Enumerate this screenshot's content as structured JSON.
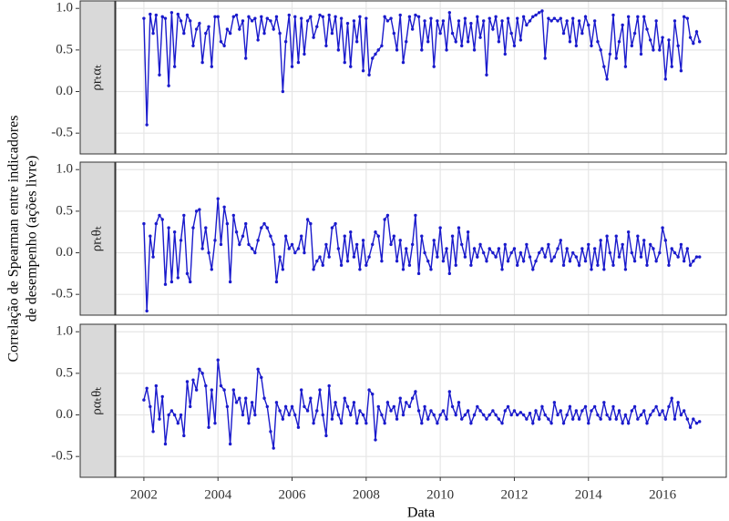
{
  "chart_data": {
    "type": "line",
    "x_label": "Data",
    "y_label": [
      "Correlação de Spearman entre indicadores",
      "de desempenho (ações livre)"
    ],
    "x": [
      2002.0,
      2002.08,
      2002.17,
      2002.25,
      2002.33,
      2002.42,
      2002.5,
      2002.58,
      2002.67,
      2002.75,
      2002.83,
      2002.92,
      2003.0,
      2003.08,
      2003.17,
      2003.25,
      2003.33,
      2003.42,
      2003.5,
      2003.58,
      2003.67,
      2003.75,
      2003.83,
      2003.92,
      2004.0,
      2004.08,
      2004.17,
      2004.25,
      2004.33,
      2004.42,
      2004.5,
      2004.58,
      2004.67,
      2004.75,
      2004.83,
      2004.92,
      2005.0,
      2005.08,
      2005.17,
      2005.25,
      2005.33,
      2005.42,
      2005.5,
      2005.58,
      2005.67,
      2005.75,
      2005.83,
      2005.92,
      2006.0,
      2006.08,
      2006.17,
      2006.25,
      2006.33,
      2006.42,
      2006.5,
      2006.58,
      2006.67,
      2006.75,
      2006.83,
      2006.92,
      2007.0,
      2007.08,
      2007.17,
      2007.25,
      2007.33,
      2007.42,
      2007.5,
      2007.58,
      2007.67,
      2007.75,
      2007.83,
      2007.92,
      2008.0,
      2008.08,
      2008.17,
      2008.25,
      2008.33,
      2008.42,
      2008.5,
      2008.58,
      2008.67,
      2008.75,
      2008.83,
      2008.92,
      2009.0,
      2009.08,
      2009.17,
      2009.25,
      2009.33,
      2009.42,
      2009.5,
      2009.58,
      2009.67,
      2009.75,
      2009.83,
      2009.92,
      2010.0,
      2010.08,
      2010.17,
      2010.25,
      2010.33,
      2010.42,
      2010.5,
      2010.58,
      2010.67,
      2010.75,
      2010.83,
      2010.92,
      2011.0,
      2011.08,
      2011.17,
      2011.25,
      2011.33,
      2011.42,
      2011.5,
      2011.58,
      2011.67,
      2011.75,
      2011.83,
      2011.92,
      2012.0,
      2012.08,
      2012.17,
      2012.25,
      2012.33,
      2012.42,
      2012.5,
      2012.58,
      2012.67,
      2012.75,
      2012.83,
      2012.92,
      2013.0,
      2013.08,
      2013.17,
      2013.25,
      2013.33,
      2013.42,
      2013.5,
      2013.58,
      2013.67,
      2013.75,
      2013.83,
      2013.92,
      2014.0,
      2014.08,
      2014.17,
      2014.25,
      2014.33,
      2014.42,
      2014.5,
      2014.58,
      2014.67,
      2014.75,
      2014.83,
      2014.92,
      2015.0,
      2015.08,
      2015.17,
      2015.25,
      2015.33,
      2015.42,
      2015.5,
      2015.58,
      2015.67,
      2015.75,
      2015.83,
      2015.92,
      2016.0,
      2016.08,
      2016.17,
      2016.25,
      2016.33,
      2016.42,
      2016.5,
      2016.58,
      2016.67,
      2016.75,
      2016.83,
      2016.92,
      2017.0
    ],
    "series": [
      {
        "name": "ρrₜαₜ",
        "color": "#1a1acc",
        "values": [
          0.88,
          -0.4,
          0.93,
          0.7,
          0.92,
          0.2,
          0.9,
          0.88,
          0.07,
          0.95,
          0.3,
          0.93,
          0.85,
          0.7,
          0.92,
          0.85,
          0.55,
          0.75,
          0.82,
          0.35,
          0.7,
          0.78,
          0.3,
          0.9,
          0.9,
          0.6,
          0.55,
          0.75,
          0.7,
          0.9,
          0.92,
          0.75,
          0.85,
          0.4,
          0.9,
          0.85,
          0.88,
          0.62,
          0.9,
          0.7,
          0.88,
          0.85,
          0.75,
          0.9,
          0.7,
          0.0,
          0.6,
          0.92,
          0.3,
          0.9,
          0.35,
          0.88,
          0.45,
          0.85,
          0.9,
          0.65,
          0.78,
          0.92,
          0.9,
          0.55,
          0.92,
          0.7,
          0.9,
          0.5,
          0.88,
          0.35,
          0.82,
          0.3,
          0.85,
          0.6,
          0.9,
          0.25,
          0.88,
          0.2,
          0.4,
          0.45,
          0.5,
          0.55,
          0.9,
          0.85,
          0.88,
          0.7,
          0.5,
          0.92,
          0.35,
          0.6,
          0.9,
          0.75,
          0.92,
          0.9,
          0.5,
          0.85,
          0.6,
          0.88,
          0.3,
          0.85,
          0.7,
          0.85,
          0.5,
          0.95,
          0.7,
          0.6,
          0.85,
          0.55,
          0.88,
          0.6,
          0.82,
          0.5,
          0.9,
          0.65,
          0.85,
          0.2,
          0.88,
          0.75,
          0.9,
          0.6,
          0.85,
          0.45,
          0.88,
          0.7,
          0.55,
          0.88,
          0.62,
          0.9,
          0.8,
          0.85,
          0.9,
          0.92,
          0.95,
          0.97,
          0.4,
          0.88,
          0.85,
          0.88,
          0.85,
          0.88,
          0.7,
          0.85,
          0.6,
          0.88,
          0.55,
          0.85,
          0.7,
          0.9,
          0.8,
          0.55,
          0.85,
          0.6,
          0.5,
          0.3,
          0.15,
          0.45,
          0.92,
          0.4,
          0.6,
          0.8,
          0.3,
          0.9,
          0.55,
          0.7,
          0.9,
          0.45,
          0.9,
          0.75,
          0.62,
          0.5,
          0.85,
          0.5,
          0.65,
          0.15,
          0.62,
          0.3,
          0.85,
          0.55,
          0.25,
          0.9,
          0.88,
          0.65,
          0.58,
          0.72,
          0.6
        ]
      },
      {
        "name": "ρrₜθₜ",
        "color": "#1a1acc",
        "values": [
          0.35,
          -0.7,
          0.2,
          -0.05,
          0.35,
          0.45,
          0.4,
          -0.38,
          0.3,
          -0.35,
          0.25,
          -0.3,
          0.15,
          0.45,
          -0.25,
          -0.35,
          0.3,
          0.5,
          0.52,
          0.05,
          0.3,
          0.0,
          -0.2,
          0.15,
          0.65,
          0.1,
          0.55,
          0.35,
          -0.35,
          0.45,
          0.25,
          0.1,
          0.2,
          0.35,
          0.1,
          0.05,
          0.0,
          0.15,
          0.3,
          0.35,
          0.3,
          0.2,
          0.1,
          -0.35,
          -0.05,
          -0.2,
          0.2,
          0.05,
          0.1,
          0.0,
          0.05,
          0.2,
          0.0,
          0.4,
          0.35,
          -0.2,
          -0.1,
          -0.05,
          -0.15,
          0.1,
          -0.05,
          0.3,
          0.35,
          0.05,
          -0.15,
          0.2,
          -0.1,
          0.25,
          -0.05,
          0.1,
          -0.2,
          0.15,
          -0.15,
          -0.05,
          0.1,
          0.25,
          0.2,
          -0.1,
          0.4,
          0.45,
          0.1,
          0.2,
          -0.1,
          0.15,
          -0.2,
          0.05,
          -0.15,
          0.1,
          0.45,
          -0.25,
          0.2,
          0.0,
          -0.1,
          -0.2,
          0.15,
          -0.05,
          0.3,
          -0.1,
          0.05,
          -0.25,
          0.2,
          -0.15,
          0.3,
          0.1,
          -0.05,
          0.25,
          -0.15,
          0.05,
          -0.05,
          0.1,
          0.0,
          -0.1,
          0.05,
          0.0,
          -0.05,
          0.05,
          -0.2,
          0.1,
          -0.1,
          0.0,
          0.05,
          -0.15,
          0.0,
          -0.1,
          0.1,
          -0.05,
          -0.2,
          -0.1,
          0.0,
          0.05,
          -0.05,
          0.1,
          -0.1,
          -0.05,
          0.05,
          0.15,
          -0.15,
          0.05,
          -0.1,
          0.0,
          -0.05,
          -0.15,
          0.05,
          -0.1,
          0.1,
          -0.2,
          0.05,
          -0.15,
          0.15,
          -0.2,
          0.2,
          0.0,
          -0.15,
          0.2,
          -0.05,
          0.1,
          -0.2,
          0.25,
          0.0,
          -0.1,
          0.2,
          -0.05,
          0.15,
          -0.15,
          0.1,
          0.05,
          -0.1,
          0.0,
          0.3,
          0.15,
          -0.15,
          0.05,
          0.0,
          -0.05,
          0.1,
          -0.1,
          0.05,
          -0.15,
          -0.1,
          -0.05,
          -0.05
        ]
      },
      {
        "name": "ραₜθₜ",
        "color": "#1a1acc",
        "values": [
          0.18,
          0.32,
          0.1,
          -0.2,
          0.35,
          -0.05,
          0.22,
          -0.35,
          0.0,
          0.05,
          0.0,
          -0.1,
          0.0,
          -0.25,
          0.4,
          0.1,
          0.42,
          0.3,
          0.55,
          0.5,
          0.35,
          -0.15,
          0.3,
          -0.1,
          0.66,
          0.35,
          0.3,
          0.1,
          -0.35,
          0.3,
          0.15,
          0.2,
          0.0,
          0.2,
          -0.1,
          0.15,
          0.0,
          0.55,
          0.45,
          0.2,
          0.1,
          -0.2,
          -0.4,
          0.15,
          0.05,
          -0.05,
          0.1,
          0.0,
          0.1,
          0.0,
          -0.15,
          0.3,
          0.1,
          0.05,
          0.2,
          -0.1,
          0.05,
          0.3,
          0.0,
          -0.25,
          0.35,
          -0.05,
          0.15,
          0.0,
          -0.1,
          0.2,
          0.1,
          0.0,
          0.15,
          -0.1,
          0.05,
          0.0,
          -0.1,
          0.3,
          0.25,
          -0.3,
          0.1,
          0.0,
          -0.1,
          0.15,
          0.05,
          0.1,
          -0.05,
          0.2,
          0.0,
          0.15,
          0.1,
          0.2,
          0.28,
          0.05,
          -0.1,
          0.1,
          -0.05,
          0.05,
          0.0,
          -0.1,
          0.0,
          0.05,
          -0.05,
          0.28,
          0.1,
          0.0,
          0.15,
          -0.05,
          0.0,
          0.05,
          -0.1,
          0.0,
          0.1,
          0.05,
          0.0,
          -0.05,
          0.0,
          0.05,
          0.0,
          -0.05,
          -0.1,
          0.05,
          0.1,
          0.0,
          0.05,
          0.0,
          0.03,
          0.0,
          -0.05,
          0.02,
          -0.1,
          0.05,
          -0.05,
          0.1,
          0.0,
          -0.05,
          -0.1,
          0.15,
          0.0,
          0.05,
          -0.1,
          0.0,
          0.1,
          -0.05,
          0.05,
          -0.05,
          0.05,
          0.1,
          -0.1,
          0.05,
          0.1,
          0.0,
          -0.05,
          0.15,
          0.0,
          -0.05,
          0.1,
          -0.05,
          0.05,
          -0.1,
          0.0,
          -0.1,
          0.05,
          0.1,
          -0.05,
          0.0,
          0.05,
          -0.1,
          0.0,
          0.05,
          0.1,
          0.0,
          0.05,
          -0.05,
          0.1,
          0.2,
          -0.05,
          0.15,
          0.0,
          0.05,
          -0.05,
          -0.15,
          -0.05,
          -0.1,
          -0.08
        ]
      }
    ],
    "xlim": [
      2001.24,
      2017.72
    ],
    "xticks": [
      2002,
      2004,
      2006,
      2008,
      2010,
      2012,
      2014,
      2016
    ],
    "ylim": [
      -0.75,
      1.09
    ],
    "yticks": [
      -0.5,
      {
        "value": 0,
        "label": "0.0"
      },
      0.5,
      {
        "value": 1,
        "label": "1.0"
      }
    ],
    "grid": true
  }
}
